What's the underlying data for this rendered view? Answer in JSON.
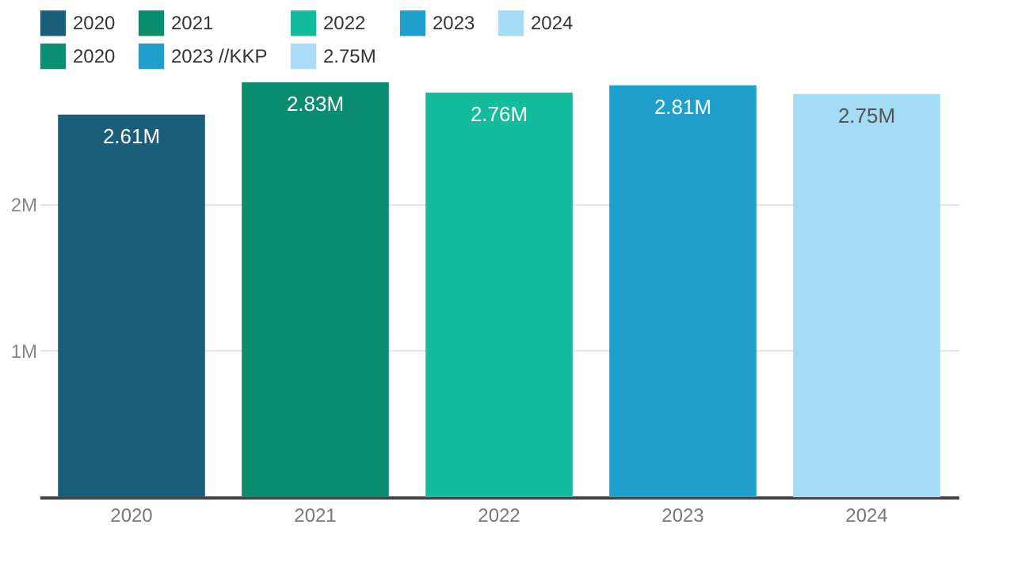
{
  "chart_data": {
    "type": "bar",
    "categories": [
      "2020",
      "2021",
      "2022",
      "2023",
      "2024"
    ],
    "series": [
      {
        "name": "2020",
        "color": "#1a5e7a",
        "values": [
          2610000,
          null,
          null,
          null,
          null
        ],
        "value_labels": [
          "2.61M",
          null,
          null,
          null,
          null
        ]
      },
      {
        "name": "2021",
        "color": "#0a8c6e",
        "values": [
          null,
          2830000,
          null,
          null,
          null
        ],
        "value_labels": [
          null,
          "2.83M",
          null,
          null,
          null
        ]
      },
      {
        "name": "2022",
        "color": "#12bc9c",
        "values": [
          null,
          null,
          2760000,
          null,
          null
        ],
        "value_labels": [
          null,
          null,
          "2.76M",
          null,
          null
        ]
      },
      {
        "name": "2023",
        "color": "#1e9fcc",
        "values": [
          null,
          null,
          null,
          2810000,
          null
        ],
        "value_labels": [
          null,
          null,
          null,
          "2.81M",
          null
        ]
      },
      {
        "name": "2024",
        "color": "#a4dcf5",
        "values": [
          null,
          null,
          null,
          null,
          2750000
        ],
        "value_labels": [
          null,
          null,
          null,
          null,
          "2.75M"
        ]
      },
      {
        "name": "2020",
        "color": "#0b8f73",
        "values": [
          null,
          null,
          null,
          null,
          null
        ]
      },
      {
        "name": "2023 //KKP",
        "color": "#1e9fcc",
        "values": [
          null,
          null,
          null,
          null,
          null
        ]
      },
      {
        "name": "2.75M",
        "color": "#a8dcf7",
        "values": [
          null,
          null,
          null,
          null,
          null
        ]
      }
    ],
    "ylim": [
      0,
      2830000
    ],
    "yticks": [
      {
        "value": 1000000,
        "label": "1M"
      },
      {
        "value": 2000000,
        "label": "2M"
      }
    ],
    "grid": "y",
    "legend": "top left"
  }
}
